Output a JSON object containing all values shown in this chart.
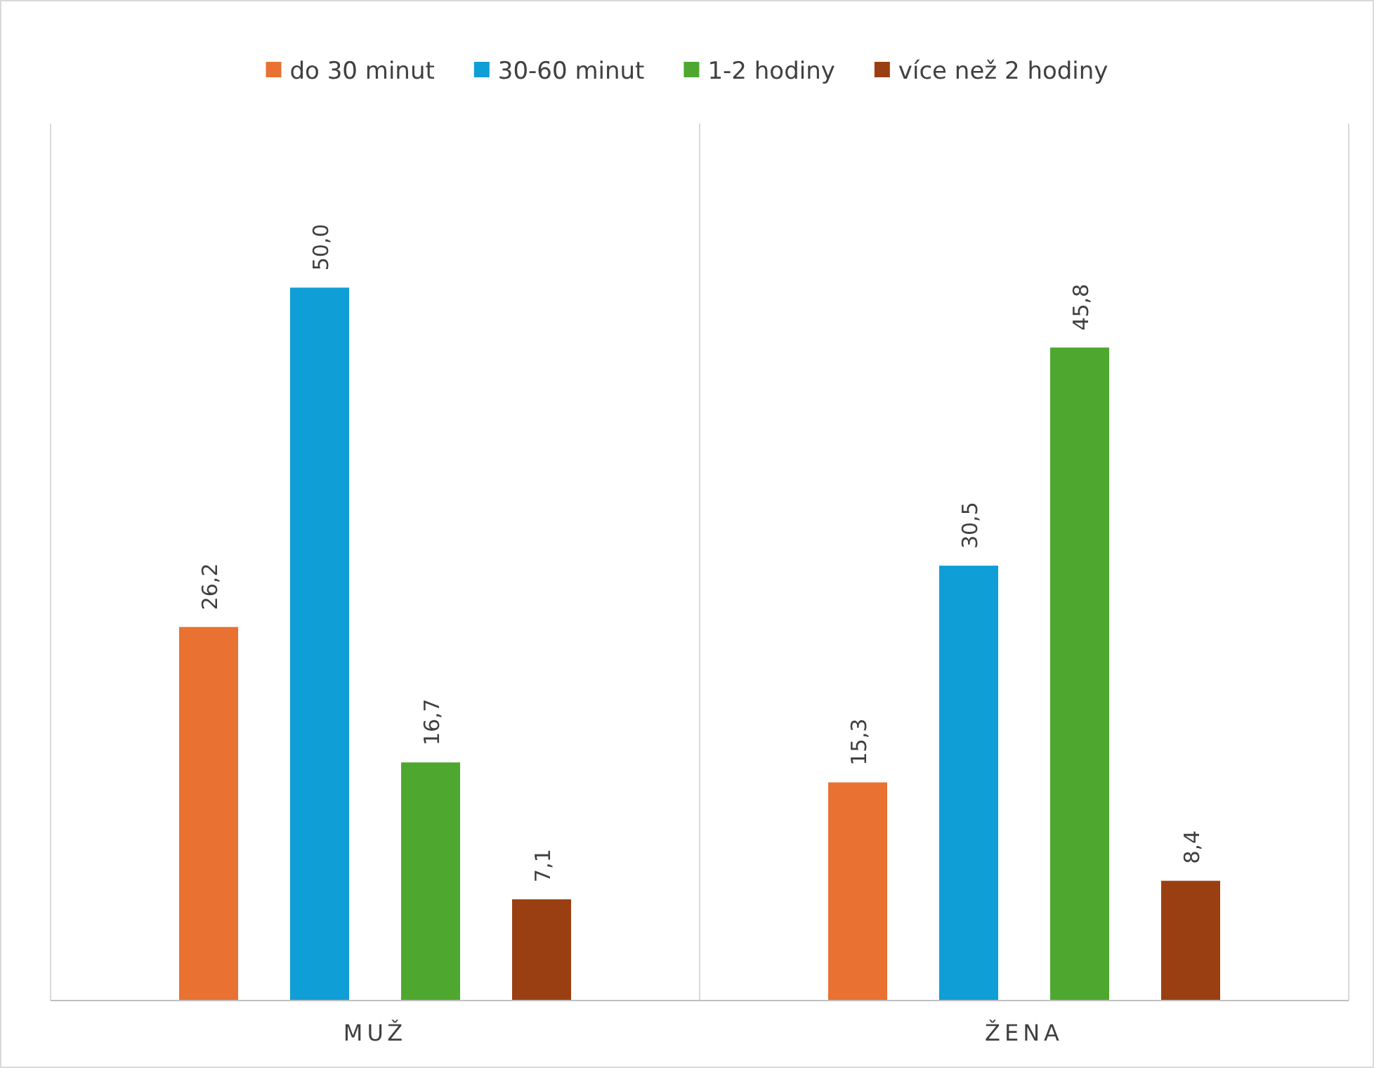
{
  "chart_data": {
    "type": "bar",
    "categories": [
      "MUŽ",
      "ŽENA"
    ],
    "series": [
      {
        "name": "do 30 minut",
        "color": "#e97132",
        "values": [
          26.2,
          15.3
        ],
        "value_labels": [
          "26,2",
          "15,3"
        ]
      },
      {
        "name": "30-60 minut",
        "color": "#0f9ed5",
        "values": [
          50.0,
          30.5
        ],
        "value_labels": [
          "50,0",
          "30,5"
        ]
      },
      {
        "name": "1-2 hodiny",
        "color": "#4ea72e",
        "values": [
          16.7,
          45.8
        ],
        "value_labels": [
          "16,7",
          "45,8"
        ]
      },
      {
        "name": "více než 2 hodiny",
        "color": "#9a3f12",
        "values": [
          7.1,
          8.4
        ],
        "value_labels": [
          "7,1",
          "8,4"
        ]
      }
    ],
    "grid": "x",
    "legend": "top"
  }
}
